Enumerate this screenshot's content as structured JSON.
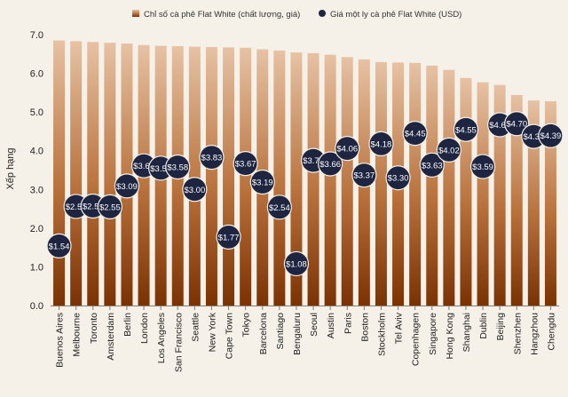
{
  "chart_data": {
    "type": "bar",
    "ylabel": "Xếp hạng",
    "ylim": [
      0,
      7
    ],
    "yticks": [
      "0.0",
      "1.0",
      "2.0",
      "3.0",
      "4.0",
      "5.0",
      "6.0",
      "7.0"
    ],
    "legend_position": "top",
    "categories": [
      "Buenos Aires",
      "Melbourne",
      "Toronto",
      "Amsterdam",
      "Berlin",
      "London",
      "Los Angeles",
      "San Francisco",
      "Seattle",
      "New York",
      "Cape Town",
      "Tokyo",
      "Barcelona",
      "Santiago",
      "Bengaluru",
      "Seoul",
      "Austin",
      "Paris",
      "Boston",
      "Stockholm",
      "Tel Aviv",
      "Copenhagen",
      "Singapore",
      "Hong Kong",
      "Shanghai",
      "Dublin",
      "Beijing",
      "Shenzhen",
      "Hangzhou",
      "Chengdu"
    ],
    "series": [
      {
        "name": "Chỉ số cà phê Flat White (chất lượng, giá)",
        "kind": "bar",
        "values": [
          6.85,
          6.83,
          6.81,
          6.79,
          6.77,
          6.73,
          6.71,
          6.7,
          6.69,
          6.68,
          6.67,
          6.66,
          6.62,
          6.59,
          6.54,
          6.52,
          6.48,
          6.42,
          6.36,
          6.29,
          6.28,
          6.27,
          6.2,
          6.09,
          5.88,
          5.77,
          5.7,
          5.44,
          5.3,
          5.28
        ]
      },
      {
        "name": "Giá một ly cà phê Flat White (USD)",
        "kind": "point",
        "values": [
          1.54,
          2.56,
          2.57,
          2.55,
          3.09,
          3.61,
          3.55,
          3.58,
          3.0,
          3.83,
          1.77,
          3.67,
          3.19,
          2.54,
          1.08,
          3.75,
          3.66,
          4.06,
          3.37,
          4.18,
          3.3,
          4.45,
          3.63,
          4.02,
          4.55,
          3.59,
          4.67,
          4.7,
          4.37,
          4.39
        ],
        "labels": [
          "$1.54",
          "$2.56",
          "$2.57",
          "$2.55",
          "$3.09",
          "$3.61",
          "$3.55",
          "$3.58",
          "$3.00",
          "$3.83",
          "$1.77",
          "$3.67",
          "$3.19",
          "$2.54",
          "$1.08",
          "$3.75",
          "$3.66",
          "$4.06",
          "$3.37",
          "$4.18",
          "$3.30",
          "$4.45",
          "$3.63",
          "$4.02",
          "$4.55",
          "$3.59",
          "$4.67",
          "$4.70",
          "$4.37",
          "$4.39"
        ]
      }
    ],
    "colors": {
      "bar_top": "#e6c2a4",
      "bar_bottom": "#7a3203",
      "point_fill": "#1e2540",
      "point_stroke": "#f4ede4"
    }
  }
}
